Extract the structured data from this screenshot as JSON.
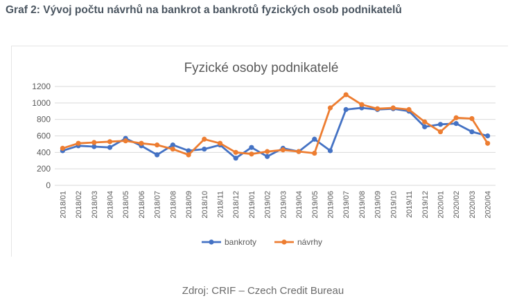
{
  "heading": "Graf 2: Vývoj počtu návrhů na bankrot a bankrotů fyzických osob podnikatelů",
  "source": "Zdroj: CRIF – Czech Credit Bureau",
  "chart_data": {
    "type": "line",
    "title": "Fyzické osoby podnikatelé",
    "xlabel": "",
    "ylabel": "",
    "ylim": [
      0,
      1200
    ],
    "yticks": [
      0,
      200,
      400,
      600,
      800,
      1000,
      1200
    ],
    "grid": true,
    "legend_position": "bottom",
    "categories": [
      "2018/01",
      "2018/02",
      "2018/03",
      "2018/04",
      "2018/05",
      "2018/06",
      "2018/07",
      "2018/08",
      "2018/09",
      "2018/10",
      "2018/11",
      "2018/12",
      "2019/01",
      "2019/02",
      "2019/03",
      "2019/04",
      "2019/05",
      "2019/06",
      "2019/07",
      "2019/08",
      "2019/09",
      "2019/10",
      "2019/11",
      "2019/12",
      "2020/01",
      "2020/02",
      "2020/03",
      "2020/04"
    ],
    "series": [
      {
        "name": "bankroty",
        "color": "#4472c4",
        "values": [
          420,
          480,
          470,
          460,
          570,
          480,
          370,
          490,
          420,
          440,
          490,
          330,
          460,
          350,
          450,
          410,
          560,
          420,
          920,
          940,
          920,
          930,
          900,
          710,
          740,
          750,
          650,
          600
        ]
      },
      {
        "name": "návrhy",
        "color": "#ed7d31",
        "values": [
          450,
          510,
          520,
          530,
          540,
          510,
          490,
          440,
          370,
          560,
          510,
          400,
          380,
          410,
          430,
          410,
          390,
          940,
          1100,
          980,
          930,
          940,
          920,
          770,
          650,
          820,
          810,
          510
        ]
      }
    ]
  }
}
